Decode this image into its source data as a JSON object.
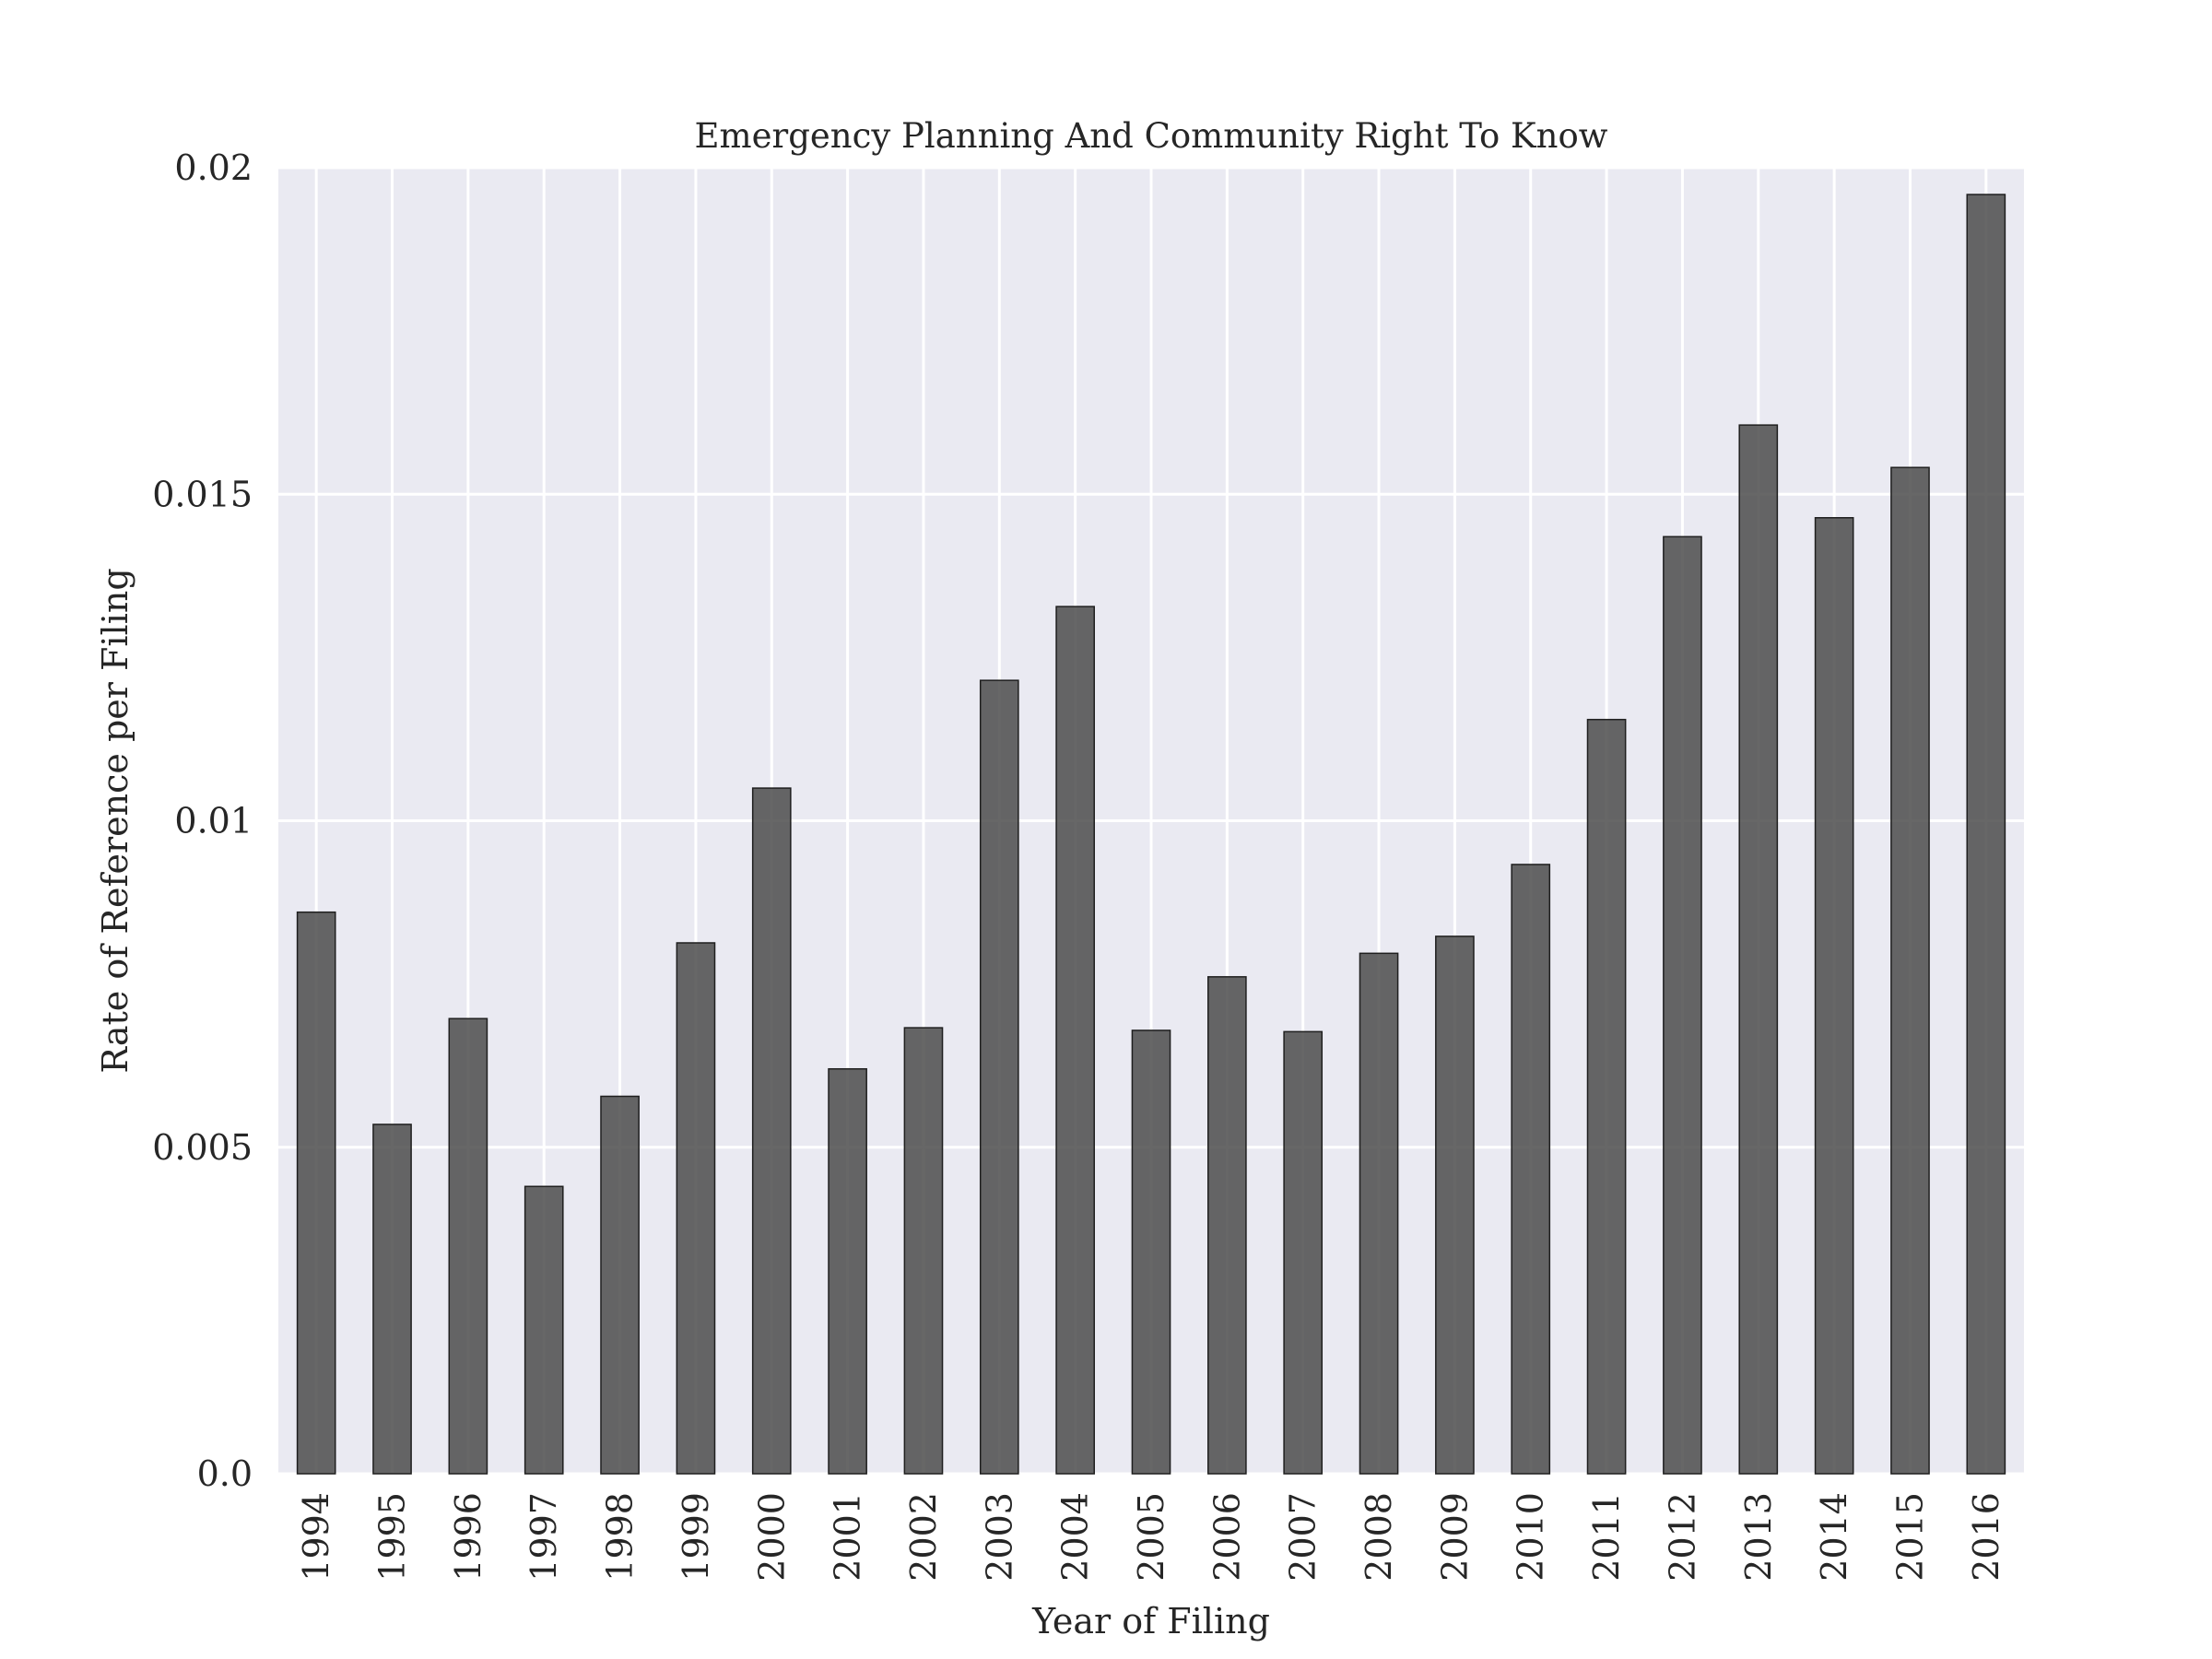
{
  "chart_data": {
    "type": "bar",
    "title": "Emergency Planning And Community Right To Know",
    "xlabel": "Year of Filing",
    "ylabel": "Rate of Reference per Filing",
    "categories": [
      "1994",
      "1995",
      "1996",
      "1997",
      "1998",
      "1999",
      "2000",
      "2001",
      "2002",
      "2003",
      "2004",
      "2005",
      "2006",
      "2007",
      "2008",
      "2009",
      "2010",
      "2011",
      "2012",
      "2013",
      "2014",
      "2015",
      "2016"
    ],
    "values": [
      0.0086,
      0.00535,
      0.00697,
      0.0044,
      0.00578,
      0.00813,
      0.0105,
      0.0062,
      0.00683,
      0.01215,
      0.01328,
      0.00679,
      0.00761,
      0.00677,
      0.00797,
      0.00823,
      0.00933,
      0.01155,
      0.01435,
      0.01606,
      0.01464,
      0.01541,
      0.01959
    ],
    "ylim": [
      0,
      0.02
    ],
    "yticks": [
      "0.0",
      "0.005",
      "0.01",
      "0.015",
      "0.02"
    ],
    "grid": true,
    "colors": {
      "bar_fill": "#4c4c4c",
      "bar_edge": "#1f1f1f",
      "plot_background": "#eaeaf2",
      "grid": "#ffffff"
    }
  }
}
